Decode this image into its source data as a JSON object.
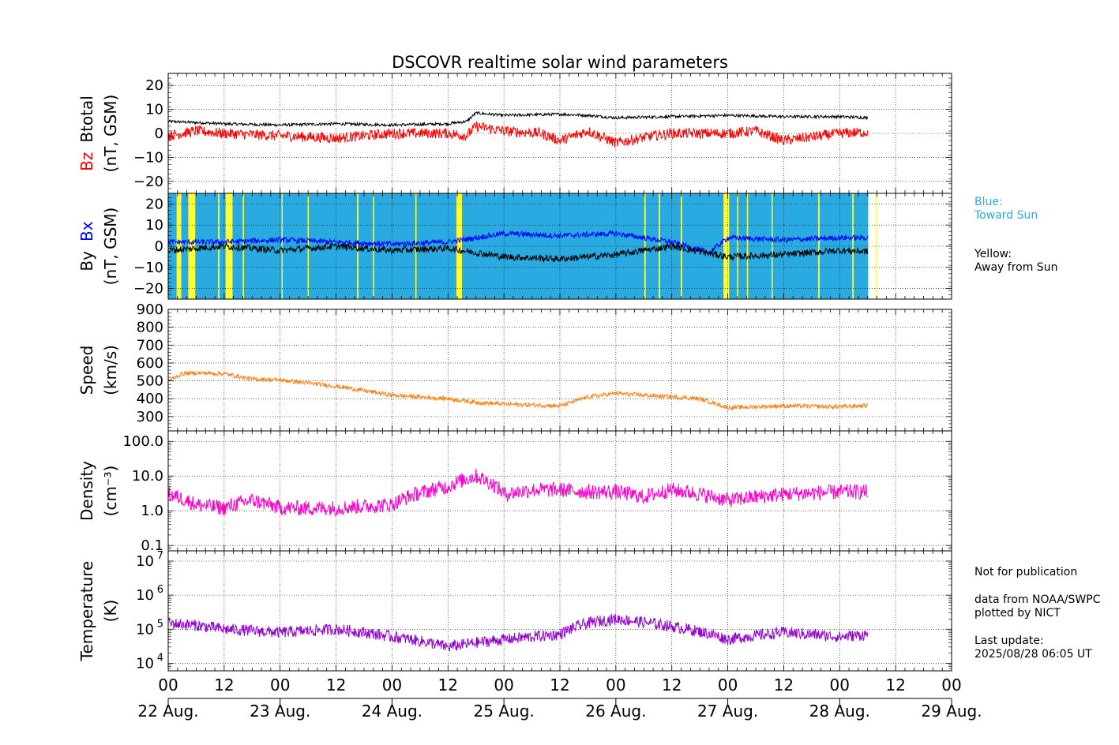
{
  "chart_data": {
    "type": "line",
    "title": "DSCOVR realtime solar wind parameters",
    "time_range": [
      "2025-08-22 00:00",
      "2025-08-29 00:00"
    ],
    "data_end": "2025-08-28 06:05",
    "hour_tick_labels": [
      "00",
      "12",
      "00",
      "12",
      "00",
      "12",
      "00",
      "12",
      "00",
      "12",
      "00",
      "12",
      "00",
      "12",
      "00"
    ],
    "date_labels": [
      "22 Aug.",
      "23 Aug.",
      "24 Aug.",
      "25 Aug.",
      "26 Aug.",
      "27 Aug.",
      "28 Aug.",
      "29 Aug."
    ],
    "panels": [
      {
        "id": "mag-total",
        "ylabel": [
          "Bz",
          "Btotal",
          "(nT, GSM)"
        ],
        "ylabel_colors": [
          "#ff0000",
          "#000000",
          "#000000"
        ],
        "ylim": [
          -25,
          25
        ],
        "ticks": [
          -20,
          -10,
          0,
          10,
          20
        ],
        "tick_labels": [
          "−20",
          "−10",
          "0",
          "10",
          "20"
        ],
        "series": [
          {
            "name": "Btotal",
            "color": "#000000",
            "x": [
              0,
              6,
              12,
              24,
              36,
              48,
              60,
              64,
              66,
              72,
              84,
              90,
              96,
              108,
              120,
              132,
              144,
              156,
              162
            ],
            "y": [
              5,
              4.5,
              4,
              3.5,
              4,
              3.5,
              4,
              5,
              8.5,
              7.5,
              8,
              7.5,
              6.5,
              7,
              7.5,
              7,
              7,
              6,
              5.5
            ]
          },
          {
            "name": "Bz",
            "color": "#ff0000",
            "x": [
              0,
              6,
              12,
              24,
              36,
              48,
              60,
              64,
              66,
              72,
              80,
              84,
              90,
              96,
              104,
              108,
              120,
              126,
              132,
              144,
              156,
              162
            ],
            "y": [
              -1,
              1,
              0,
              -1,
              -2,
              0,
              0,
              -1,
              3,
              1,
              0,
              -3,
              1,
              -4,
              -1,
              0,
              0,
              1,
              -3,
              0,
              1,
              0
            ]
          }
        ]
      },
      {
        "id": "mag-xy",
        "ylabel": [
          "By",
          "Bx",
          "(nT, GSM)"
        ],
        "ylabel_colors": [
          "#000000",
          "#0000ff",
          "#000000"
        ],
        "ylim": [
          -25,
          25
        ],
        "ticks": [
          -20,
          -10,
          0,
          10,
          20
        ],
        "tick_labels": [
          "−20",
          "−10",
          "0",
          "10",
          "20"
        ],
        "series": [
          {
            "name": "Bx",
            "color": "#0000ff",
            "x": [
              0,
              12,
              24,
              36,
              48,
              60,
              72,
              84,
              96,
              108,
              116,
              120,
              132,
              144,
              156,
              162
            ],
            "y": [
              2,
              2,
              3,
              2,
              1,
              2,
              6,
              5,
              6,
              2,
              -3,
              4,
              3,
              4,
              4,
              3
            ]
          },
          {
            "name": "By",
            "color": "#000000",
            "x": [
              0,
              12,
              24,
              36,
              48,
              60,
              72,
              84,
              96,
              108,
              120,
              132,
              144,
              156,
              162
            ],
            "y": [
              -2,
              0,
              -2,
              0,
              -2,
              -1,
              -5,
              -6,
              -4,
              0,
              -5,
              -4,
              -2,
              -3,
              -4
            ]
          }
        ]
      },
      {
        "id": "speed",
        "ylabel": [
          "Speed",
          "(km/s)"
        ],
        "ylabel_colors": [
          "#000000",
          "#000000"
        ],
        "ylim": [
          220,
          900
        ],
        "ticks": [
          300,
          400,
          500,
          600,
          700,
          800,
          900
        ],
        "tick_labels": [
          "300",
          "400",
          "500",
          "600",
          "700",
          "800",
          "900"
        ],
        "series": [
          {
            "name": "Speed",
            "color": "#ff7f0e",
            "x": [
              0,
              3,
              6,
              12,
              18,
              24,
              36,
              48,
              60,
              66,
              72,
              84,
              90,
              96,
              108,
              114,
              120,
              132,
              144,
              156,
              162
            ],
            "y": [
              500,
              540,
              545,
              540,
              510,
              505,
              470,
              420,
              400,
              380,
              370,
              360,
              410,
              430,
              410,
              400,
              350,
              360,
              355,
              370,
              395
            ]
          }
        ]
      },
      {
        "id": "density",
        "ylabel": [
          "Density",
          "(cm⁻³)"
        ],
        "ylabel_colors": [
          "#000000",
          "#000000"
        ],
        "scale": "log",
        "ylim": [
          0.07,
          200
        ],
        "ticks": [
          0.1,
          1,
          10,
          100
        ],
        "tick_labels": [
          "0.1",
          "1.0",
          "10.0",
          "100.0"
        ],
        "series": [
          {
            "name": "Density",
            "color": "#ff00cc",
            "x": [
              0,
              6,
              12,
              18,
              24,
              36,
              48,
              60,
              66,
              72,
              78,
              84,
              90,
              96,
              102,
              108,
              120,
              132,
              144,
              156,
              162
            ],
            "y": [
              3,
              1.5,
              1.2,
              2,
              1.2,
              1.2,
              1.5,
              5,
              10,
              3,
              4,
              4,
              3.5,
              3.5,
              2.5,
              4,
              2,
              3,
              3.5,
              3.5,
              4
            ]
          }
        ]
      },
      {
        "id": "temperature",
        "ylabel": [
          "Temperature",
          "(K)"
        ],
        "ylabel_colors": [
          "#000000",
          "#000000"
        ],
        "scale": "log",
        "ylim": [
          6000,
          20000000
        ],
        "ticks": [
          10000,
          100000,
          1000000,
          10000000
        ],
        "tick_labels": [
          "10",
          "10",
          "10",
          "10"
        ],
        "tick_exponents": [
          "4",
          "5",
          "6",
          "7"
        ],
        "series": [
          {
            "name": "Temperature",
            "color": "#9400d3",
            "x": [
              0,
              6,
              12,
              24,
              36,
              48,
              60,
              72,
              84,
              90,
              96,
              108,
              120,
              132,
              144,
              156,
              162
            ],
            "y": [
              150000,
              130000,
              100000,
              80000,
              100000,
              60000,
              30000,
              50000,
              70000,
              150000,
              200000,
              120000,
              50000,
              80000,
              60000,
              80000,
              90000
            ]
          }
        ]
      }
    ],
    "imf_sectors": {
      "toward_color": "#29abe2",
      "away_color": "#ffff33",
      "away_intervals_hours": [
        [
          1.8,
          2.8
        ],
        [
          4.3,
          5.8
        ],
        [
          10.7,
          11.0
        ],
        [
          12.3,
          13.8
        ],
        [
          16,
          16.2
        ],
        [
          24.3,
          24.5
        ],
        [
          29.9,
          30.1
        ],
        [
          40.5,
          40.8
        ],
        [
          43.9,
          44.1
        ],
        [
          53,
          53.2
        ],
        [
          61.8,
          63.0
        ],
        [
          102.1,
          102.4
        ],
        [
          105.2,
          105.5
        ],
        [
          109.9,
          110.2
        ],
        [
          119.1,
          120.3
        ],
        [
          122,
          122.2
        ],
        [
          124.1,
          124.3
        ],
        [
          129.4,
          129.6
        ],
        [
          139.4,
          139.7
        ],
        [
          146.7,
          147.0
        ],
        [
          151.7,
          152.0
        ]
      ]
    }
  },
  "legend": {
    "blue_title": "Blue:",
    "blue_text": "Toward Sun",
    "blue_color": "#29abe2",
    "yellow_title": "Yellow:",
    "yellow_text": "Away from Sun"
  },
  "footer": {
    "notice": "Not for publication",
    "source": "data from NOAA/SWPC",
    "plotted": "plotted by NICT",
    "update_label": "Last update:",
    "update_time": "2025/08/28 06:05 UT"
  }
}
